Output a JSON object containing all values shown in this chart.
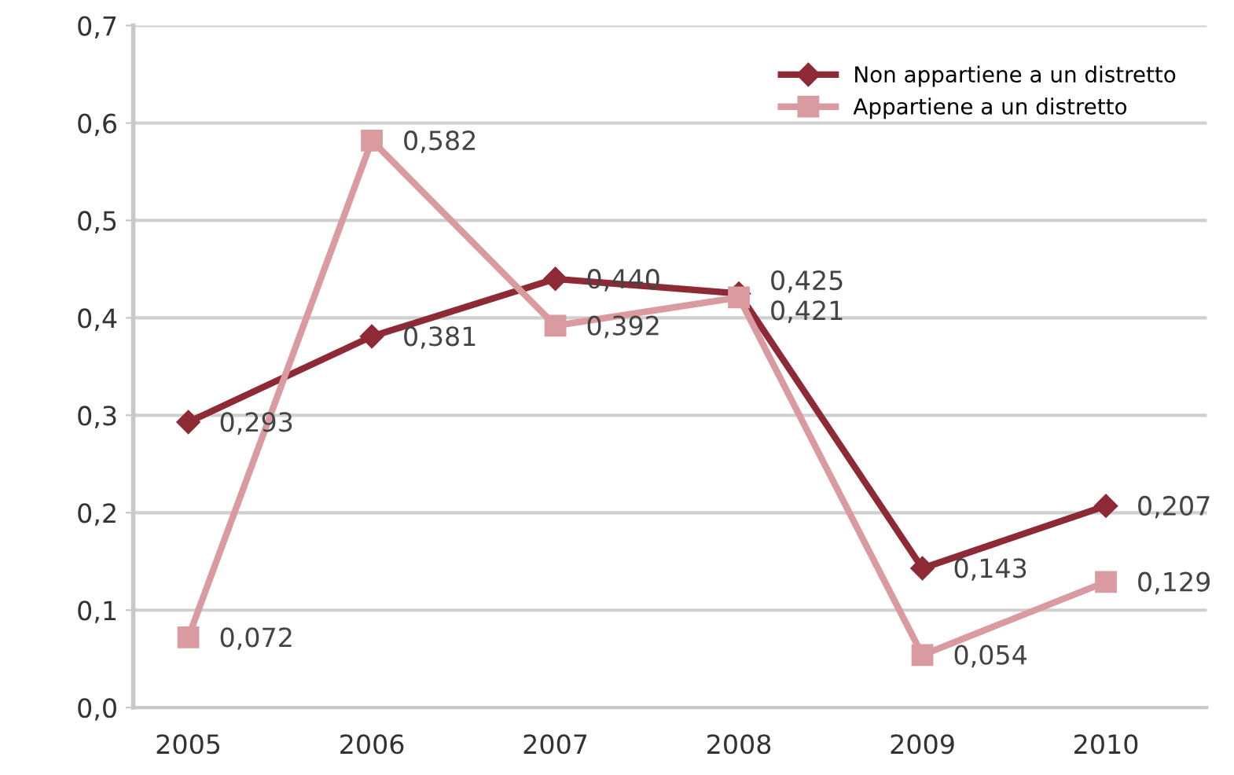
{
  "chart_data": {
    "type": "line",
    "categories": [
      "2005",
      "2006",
      "2007",
      "2008",
      "2009",
      "2010"
    ],
    "series": [
      {
        "name": "Non appartiene a un distretto",
        "color": "#8e2a35",
        "marker": "diamond",
        "values": [
          0.293,
          0.381,
          0.44,
          0.425,
          0.143,
          0.207
        ],
        "value_labels": [
          "0,293",
          "0,381",
          "0,440",
          "0,425",
          "0,143",
          "0,207"
        ]
      },
      {
        "name": "Appartiene a un distretto",
        "color": "#d99aa0",
        "marker": "square",
        "values": [
          0.072,
          0.582,
          0.392,
          0.421,
          0.054,
          0.129
        ],
        "value_labels": [
          "0,072",
          "0,582",
          "0,392",
          "0,421",
          "0,054",
          "0,129"
        ]
      }
    ],
    "ylim": [
      0,
      0.7
    ],
    "yticks": [
      {
        "value": 0,
        "label": "0,0"
      },
      {
        "value": 0.1,
        "label": "0,1"
      },
      {
        "value": 0.2,
        "label": "0,2"
      },
      {
        "value": 0.3,
        "label": "0,3"
      },
      {
        "value": 0.4,
        "label": "0,4"
      },
      {
        "value": 0.5,
        "label": "0,5"
      },
      {
        "value": 0.6,
        "label": "0,6"
      },
      {
        "value": 0.7,
        "label": "0,7"
      }
    ],
    "grid": "y",
    "legend": "top right",
    "line_style": "solid"
  }
}
